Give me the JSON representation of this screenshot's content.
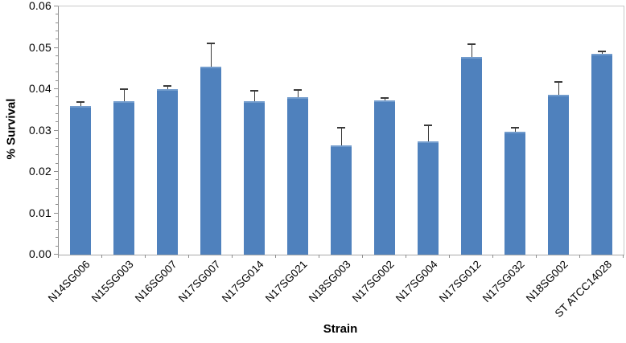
{
  "chart_data": {
    "type": "bar",
    "title": "",
    "xlabel": "Strain",
    "ylabel": "% Survival",
    "categories": [
      "N14SG006",
      "N15SG003",
      "N16SG007",
      "N17SG007",
      "N17SG014",
      "N17SG021",
      "N18SG003",
      "N17SG002",
      "N17SG004",
      "N17SG012",
      "N17SG032",
      "N18SG002",
      "ST ATCC14028"
    ],
    "values": [
      0.036,
      0.037,
      0.04,
      0.0455,
      0.037,
      0.038,
      0.0264,
      0.0372,
      0.0274,
      0.0478,
      0.0298,
      0.0387,
      0.0486
    ],
    "errors_plus": [
      0.0008,
      0.003,
      0.0008,
      0.0055,
      0.0026,
      0.0019,
      0.0043,
      0.0007,
      0.0038,
      0.003,
      0.0008,
      0.003,
      0.0006
    ],
    "ylim": [
      0,
      0.06
    ],
    "ytick_labels": [
      "0.00",
      "0.01",
      "0.02",
      "0.03",
      "0.04",
      "0.05",
      "0.06"
    ],
    "ytick_step": 0.01,
    "ytick_minor_step": 0.002,
    "grid": "off",
    "legend": "none",
    "bar_color": "#4F81BD",
    "bar_top_highlight": "#8FB2DB",
    "error_color": "#3a3a3a",
    "axis_color": "#8e8e8e",
    "plot_border_color": "#c9c9c9"
  }
}
